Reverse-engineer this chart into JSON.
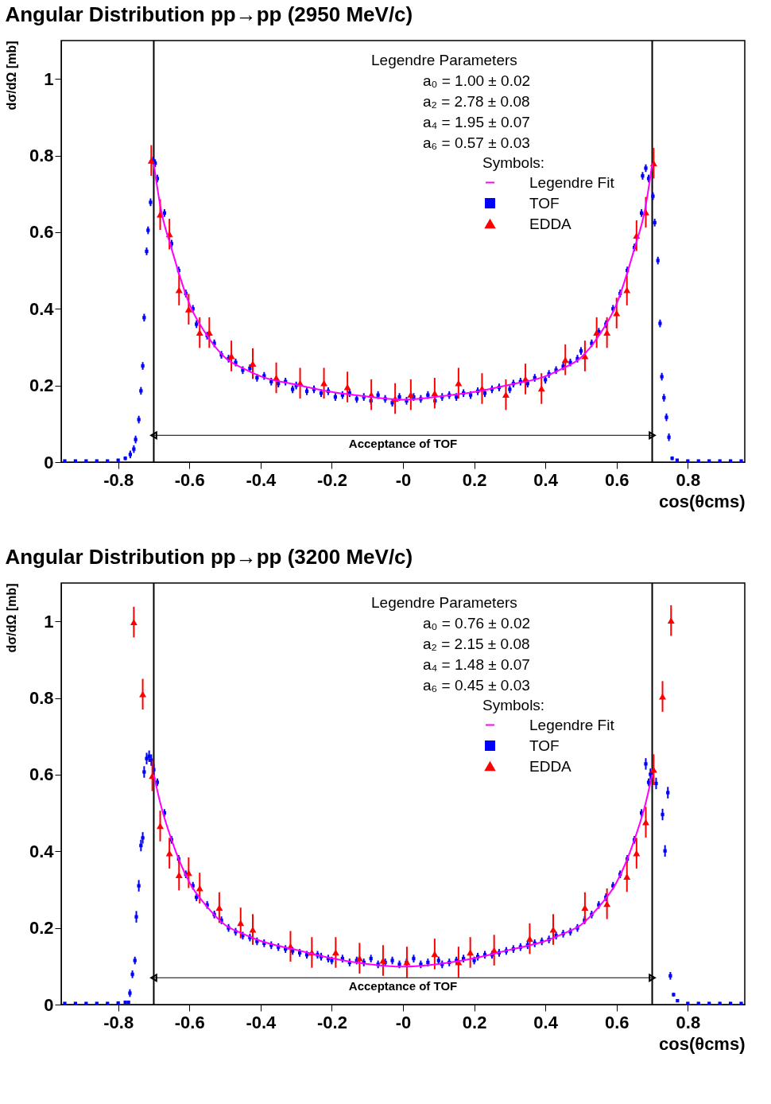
{
  "chart_data": [
    {
      "type": "scatter",
      "title": "Angular Distribution pp→pp (2950 MeV/c)",
      "xlabel": "cos(θcms)",
      "ylabel": "dσ/dΩ  [mb]",
      "xlim": [
        -0.96,
        0.96
      ],
      "ylim": [
        0,
        1.1
      ],
      "xticks": [
        -0.8,
        -0.6,
        -0.4,
        -0.2,
        {
          "value": 0,
          "label": "-0"
        },
        0.2,
        0.4,
        0.6,
        0.8
      ],
      "yticks": [
        0,
        0.2,
        0.4,
        0.6,
        0.8,
        1
      ],
      "grid": false,
      "legend": "top right",
      "legend_title": "Symbols:",
      "annotations": [
        "Legendre Parameters",
        "a₀ =  1.00 ± 0.02",
        "a₂ =  2.78 ± 0.08",
        "a₄ =  1.95 ± 0.07",
        "a₆ =  0.57 ± 0.03",
        "Acceptance of TOF"
      ],
      "ref_lines": [
        {
          "axis": "x",
          "value": -0.7,
          "color": "#000000"
        },
        {
          "axis": "x",
          "value": 0.7,
          "color": "#000000"
        }
      ],
      "series": [
        {
          "type": "line",
          "color": "#000000",
          "marker": "triangle",
          "x": [
            -0.7,
            0.7
          ],
          "values": [
            0.07,
            0.07
          ]
        },
        {
          "name": "Legendre Fit",
          "type": "line",
          "color": "#ff00ff",
          "x": [
            -0.7,
            -0.68,
            -0.65,
            -0.6,
            -0.55,
            -0.5,
            -0.45,
            -0.4,
            -0.3,
            -0.2,
            -0.1,
            0,
            0.1,
            0.2,
            0.3,
            0.4,
            0.45,
            0.5,
            0.55,
            0.6,
            0.65,
            0.68,
            0.7
          ],
          "values": [
            0.778,
            0.66,
            0.557,
            0.413,
            0.33,
            0.273,
            0.245,
            0.224,
            0.202,
            0.183,
            0.171,
            0.163,
            0.171,
            0.183,
            0.202,
            0.224,
            0.245,
            0.273,
            0.33,
            0.413,
            0.557,
            0.66,
            0.778
          ]
        },
        {
          "name": "TOF",
          "marker": "square",
          "color": "#0000ff",
          "x": [
            -0.95,
            -0.92,
            -0.89,
            -0.86,
            -0.83,
            -0.8,
            -0.78,
            -0.766,
            -0.756,
            -0.751,
            -0.742,
            -0.736,
            -0.731,
            -0.727,
            -0.72,
            -0.716,
            -0.709,
            -0.702,
            -0.696,
            -0.69,
            -0.67,
            -0.65,
            -0.63,
            -0.61,
            -0.59,
            -0.58,
            -0.55,
            -0.53,
            -0.51,
            -0.49,
            -0.47,
            -0.45,
            -0.43,
            -0.41,
            -0.39,
            -0.37,
            -0.35,
            -0.33,
            -0.31,
            -0.3,
            -0.27,
            -0.25,
            -0.23,
            -0.21,
            -0.19,
            -0.17,
            -0.15,
            -0.13,
            -0.11,
            -0.09,
            -0.07,
            -0.05,
            -0.03,
            -0.01,
            0.01,
            0.03,
            0.05,
            0.07,
            0.09,
            0.11,
            0.13,
            0.15,
            0.17,
            0.19,
            0.21,
            0.23,
            0.25,
            0.27,
            0.3,
            0.31,
            0.33,
            0.35,
            0.37,
            0.4,
            0.41,
            0.43,
            0.45,
            0.47,
            0.49,
            0.5,
            0.53,
            0.55,
            0.57,
            0.59,
            0.61,
            0.63,
            0.65,
            0.67,
            0.69,
            0.673,
            0.682,
            0.702,
            0.707,
            0.716,
            0.722,
            0.727,
            0.733,
            0.74,
            0.747,
            0.756,
            0.77,
            0.8,
            0.83,
            0.86,
            0.89,
            0.92,
            0.95
          ],
          "values": [
            0.003,
            0.003,
            0.003,
            0.003,
            0.003,
            0.005,
            0.01,
            0.02,
            0.034,
            0.059,
            0.111,
            0.186,
            0.251,
            0.377,
            0.55,
            0.605,
            0.678,
            0.787,
            0.78,
            0.74,
            0.65,
            0.57,
            0.5,
            0.44,
            0.4,
            0.36,
            0.33,
            0.31,
            0.28,
            0.27,
            0.26,
            0.24,
            0.245,
            0.22,
            0.225,
            0.21,
            0.205,
            0.21,
            0.19,
            0.2,
            0.185,
            0.19,
            0.18,
            0.185,
            0.17,
            0.175,
            0.18,
            0.165,
            0.17,
            0.16,
            0.175,
            0.165,
            0.155,
            0.17,
            0.16,
            0.17,
            0.165,
            0.175,
            0.16,
            0.17,
            0.175,
            0.17,
            0.18,
            0.175,
            0.185,
            0.18,
            0.19,
            0.195,
            0.19,
            0.205,
            0.21,
            0.205,
            0.22,
            0.215,
            0.23,
            0.24,
            0.25,
            0.26,
            0.27,
            0.29,
            0.31,
            0.34,
            0.36,
            0.4,
            0.44,
            0.5,
            0.56,
            0.65,
            0.74,
            0.747,
            0.767,
            0.694,
            0.625,
            0.526,
            0.362,
            0.223,
            0.168,
            0.117,
            0.065,
            0.01,
            0.005,
            0.003,
            0.003,
            0.003,
            0.003,
            0.003,
            0.003
          ],
          "errors": [
            0.002,
            0.002,
            0.002,
            0.002,
            0.002,
            0.002,
            0.005,
            0.01,
            0.01,
            0.01,
            0.01,
            0.01,
            0.01,
            0.01,
            0.01,
            0.01,
            0.01,
            0.01,
            0.01,
            0.01,
            0.01,
            0.01,
            0.01,
            0.01,
            0.01,
            0.01,
            0.01,
            0.01,
            0.01,
            0.01,
            0.01,
            0.01,
            0.01,
            0.01,
            0.01,
            0.01,
            0.01,
            0.01,
            0.01,
            0.01,
            0.01,
            0.01,
            0.01,
            0.01,
            0.01,
            0.01,
            0.01,
            0.01,
            0.01,
            0.01,
            0.01,
            0.01,
            0.01,
            0.01,
            0.01,
            0.01,
            0.01,
            0.01,
            0.01,
            0.01,
            0.01,
            0.01,
            0.01,
            0.01,
            0.01,
            0.01,
            0.01,
            0.01,
            0.01,
            0.01,
            0.01,
            0.01,
            0.01,
            0.01,
            0.01,
            0.01,
            0.01,
            0.01,
            0.01,
            0.01,
            0.01,
            0.01,
            0.01,
            0.01,
            0.01,
            0.01,
            0.01,
            0.01,
            0.01,
            0.01,
            0.01,
            0.01,
            0.01,
            0.01,
            0.01,
            0.01,
            0.01,
            0.01,
            0.01,
            0.005,
            0.003,
            0.002,
            0.002,
            0.002,
            0.002,
            0.002,
            0.002
          ]
        },
        {
          "name": "EDDA",
          "marker": "triangle",
          "color": "#ff0000",
          "x": [
            -0.707,
            -0.682,
            -0.656,
            -0.629,
            -0.602,
            -0.571,
            -0.544,
            -0.482,
            -0.422,
            -0.356,
            -0.289,
            -0.222,
            -0.156,
            -0.089,
            -0.022,
            0.022,
            0.089,
            0.156,
            0.222,
            0.289,
            0.344,
            0.389,
            0.456,
            0.511,
            0.544,
            0.573,
            0.6,
            0.629,
            0.656,
            0.682,
            0.704
          ],
          "values": [
            0.787,
            0.646,
            0.595,
            0.449,
            0.399,
            0.338,
            0.338,
            0.277,
            0.257,
            0.22,
            0.206,
            0.206,
            0.196,
            0.176,
            0.166,
            0.176,
            0.18,
            0.206,
            0.192,
            0.176,
            0.217,
            0.192,
            0.267,
            0.277,
            0.338,
            0.338,
            0.389,
            0.449,
            0.591,
            0.652,
            0.78
          ],
          "errors": [
            0.04,
            0.04,
            0.04,
            0.04,
            0.04,
            0.04,
            0.04,
            0.04,
            0.04,
            0.04,
            0.04,
            0.04,
            0.04,
            0.04,
            0.04,
            0.04,
            0.04,
            0.04,
            0.04,
            0.04,
            0.04,
            0.04,
            0.04,
            0.04,
            0.04,
            0.04,
            0.04,
            0.04,
            0.04,
            0.04,
            0.04
          ]
        }
      ]
    },
    {
      "type": "scatter",
      "title": "Angular Distribution pp→pp (3200 MeV/c)",
      "xlabel": "cos(θcms)",
      "ylabel": "dσ/dΩ  [mb]",
      "xlim": [
        -0.96,
        0.96
      ],
      "ylim": [
        0,
        1.1
      ],
      "xticks": [
        -0.8,
        -0.6,
        -0.4,
        -0.2,
        {
          "value": 0,
          "label": "-0"
        },
        0.2,
        0.4,
        0.6,
        0.8
      ],
      "yticks": [
        0,
        0.2,
        0.4,
        0.6,
        0.8,
        1
      ],
      "grid": false,
      "legend": "top right",
      "legend_title": "Symbols:",
      "annotations": [
        "Legendre Parameters",
        "a₀ =  0.76 ± 0.02",
        "a₂ =  2.15 ± 0.08",
        "a₄ =  1.48 ± 0.07",
        "a₆ =  0.45 ± 0.03",
        "Acceptance of TOF"
      ],
      "ref_lines": [
        {
          "axis": "x",
          "value": -0.7,
          "color": "#000000"
        },
        {
          "axis": "x",
          "value": 0.7,
          "color": "#000000"
        }
      ],
      "series": [
        {
          "type": "line",
          "color": "#000000",
          "marker": "triangle",
          "x": [
            -0.7,
            0.7
          ],
          "values": [
            0.07,
            0.07
          ]
        },
        {
          "name": "Legendre Fit",
          "type": "line",
          "color": "#ff00ff",
          "x": [
            -0.7,
            -0.68,
            -0.65,
            -0.6,
            -0.55,
            -0.5,
            -0.45,
            -0.4,
            -0.3,
            -0.2,
            -0.1,
            0,
            0.1,
            0.2,
            0.3,
            0.4,
            0.45,
            0.5,
            0.55,
            0.6,
            0.65,
            0.68,
            0.7
          ],
          "values": [
            0.6,
            0.52,
            0.43,
            0.319,
            0.255,
            0.208,
            0.185,
            0.166,
            0.143,
            0.121,
            0.106,
            0.099,
            0.106,
            0.121,
            0.143,
            0.166,
            0.185,
            0.208,
            0.255,
            0.319,
            0.43,
            0.52,
            0.6
          ]
        },
        {
          "name": "TOF",
          "marker": "square",
          "color": "#0000ff",
          "x": [
            -0.95,
            -0.92,
            -0.89,
            -0.86,
            -0.83,
            -0.8,
            -0.78,
            -0.771,
            -0.767,
            -0.76,
            -0.753,
            -0.749,
            -0.742,
            -0.736,
            -0.731,
            -0.727,
            -0.72,
            -0.713,
            -0.707,
            -0.7,
            -0.69,
            -0.67,
            -0.65,
            -0.63,
            -0.61,
            -0.59,
            -0.58,
            -0.55,
            -0.53,
            -0.51,
            -0.49,
            -0.47,
            -0.45,
            -0.43,
            -0.41,
            -0.39,
            -0.37,
            -0.35,
            -0.33,
            -0.31,
            -0.29,
            -0.27,
            -0.24,
            -0.23,
            -0.21,
            -0.2,
            -0.17,
            -0.15,
            -0.13,
            -0.11,
            -0.09,
            -0.07,
            -0.05,
            -0.03,
            -0.01,
            0.01,
            0.03,
            0.05,
            0.07,
            0.1,
            0.11,
            0.13,
            0.15,
            0.17,
            0.2,
            0.21,
            0.23,
            0.25,
            0.27,
            0.29,
            0.31,
            0.33,
            0.35,
            0.37,
            0.39,
            0.41,
            0.43,
            0.45,
            0.47,
            0.49,
            0.51,
            0.53,
            0.55,
            0.57,
            0.59,
            0.61,
            0.63,
            0.65,
            0.67,
            0.69,
            0.682,
            0.695,
            0.711,
            0.729,
            0.736,
            0.744,
            0.751,
            0.76,
            0.771,
            0.8,
            0.83,
            0.86,
            0.89,
            0.92,
            0.95
          ],
          "values": [
            0.003,
            0.003,
            0.003,
            0.003,
            0.003,
            0.004,
            0.006,
            0.006,
            0.03,
            0.079,
            0.115,
            0.229,
            0.31,
            0.415,
            0.435,
            0.607,
            0.642,
            0.648,
            0.638,
            0.613,
            0.58,
            0.5,
            0.43,
            0.38,
            0.34,
            0.31,
            0.28,
            0.26,
            0.235,
            0.22,
            0.2,
            0.19,
            0.18,
            0.175,
            0.165,
            0.16,
            0.155,
            0.15,
            0.145,
            0.14,
            0.135,
            0.13,
            0.13,
            0.125,
            0.12,
            0.115,
            0.12,
            0.11,
            0.115,
            0.11,
            0.12,
            0.105,
            0.11,
            0.115,
            0.105,
            0.11,
            0.12,
            0.105,
            0.11,
            0.115,
            0.105,
            0.11,
            0.115,
            0.12,
            0.115,
            0.125,
            0.13,
            0.13,
            0.135,
            0.14,
            0.145,
            0.15,
            0.155,
            0.16,
            0.165,
            0.17,
            0.18,
            0.185,
            0.19,
            0.2,
            0.22,
            0.235,
            0.26,
            0.28,
            0.31,
            0.34,
            0.38,
            0.43,
            0.5,
            0.58,
            0.628,
            0.601,
            0.577,
            0.496,
            0.401,
            0.553,
            0.075,
            0.026,
            0.01,
            0.003,
            0.003,
            0.003,
            0.003,
            0.003,
            0.003
          ],
          "errors": [
            0.002,
            0.002,
            0.002,
            0.002,
            0.002,
            0.002,
            0.002,
            0.003,
            0.01,
            0.01,
            0.01,
            0.015,
            0.015,
            0.015,
            0.015,
            0.015,
            0.015,
            0.015,
            0.015,
            0.015,
            0.01,
            0.01,
            0.01,
            0.01,
            0.01,
            0.01,
            0.01,
            0.01,
            0.01,
            0.01,
            0.01,
            0.01,
            0.01,
            0.01,
            0.01,
            0.01,
            0.01,
            0.01,
            0.01,
            0.01,
            0.01,
            0.01,
            0.01,
            0.01,
            0.01,
            0.01,
            0.01,
            0.01,
            0.01,
            0.01,
            0.01,
            0.01,
            0.01,
            0.01,
            0.01,
            0.01,
            0.01,
            0.01,
            0.01,
            0.01,
            0.01,
            0.01,
            0.01,
            0.01,
            0.01,
            0.01,
            0.01,
            0.01,
            0.01,
            0.01,
            0.01,
            0.01,
            0.01,
            0.01,
            0.01,
            0.01,
            0.01,
            0.01,
            0.01,
            0.01,
            0.01,
            0.01,
            0.01,
            0.01,
            0.01,
            0.01,
            0.01,
            0.01,
            0.01,
            0.01,
            0.015,
            0.015,
            0.015,
            0.015,
            0.015,
            0.015,
            0.01,
            0.005,
            0.003,
            0.002,
            0.002,
            0.002,
            0.002,
            0.002,
            0.002
          ]
        },
        {
          "name": "EDDA",
          "marker": "triangle",
          "color": "#ff0000",
          "x": [
            -0.756,
            -0.731,
            -0.704,
            -0.682,
            -0.656,
            -0.629,
            -0.602,
            -0.571,
            -0.516,
            -0.456,
            -0.422,
            -0.316,
            -0.256,
            -0.189,
            -0.122,
            -0.056,
            0.011,
            0.089,
            0.156,
            0.189,
            0.256,
            0.356,
            0.422,
            0.511,
            0.573,
            0.629,
            0.656,
            0.682,
            0.704,
            0.729,
            0.753
          ],
          "values": [
            0.998,
            0.81,
            0.597,
            0.466,
            0.395,
            0.338,
            0.344,
            0.304,
            0.253,
            0.213,
            0.196,
            0.152,
            0.136,
            0.136,
            0.121,
            0.115,
            0.111,
            0.132,
            0.111,
            0.136,
            0.142,
            0.172,
            0.196,
            0.253,
            0.263,
            0.334,
            0.395,
            0.476,
            0.613,
            0.804,
            1.002
          ],
          "errors": [
            0.04,
            0.04,
            0.04,
            0.04,
            0.04,
            0.04,
            0.04,
            0.04,
            0.04,
            0.04,
            0.04,
            0.04,
            0.04,
            0.04,
            0.04,
            0.04,
            0.04,
            0.04,
            0.04,
            0.04,
            0.04,
            0.04,
            0.04,
            0.04,
            0.04,
            0.04,
            0.04,
            0.04,
            0.04,
            0.04,
            0.04
          ]
        }
      ]
    }
  ]
}
